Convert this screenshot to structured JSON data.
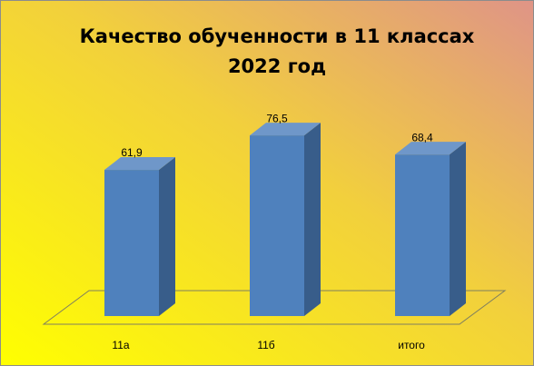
{
  "chart_data": {
    "type": "bar3d",
    "title": "Качество обученности в 11 классах 2022 год",
    "categories": [
      "11а",
      "11б",
      "итого"
    ],
    "values": [
      61.9,
      76.5,
      68.4
    ],
    "value_labels": [
      "61,9",
      "76,5",
      "68,4"
    ],
    "color": "#4f81bd",
    "ylim": [
      0,
      100
    ]
  }
}
